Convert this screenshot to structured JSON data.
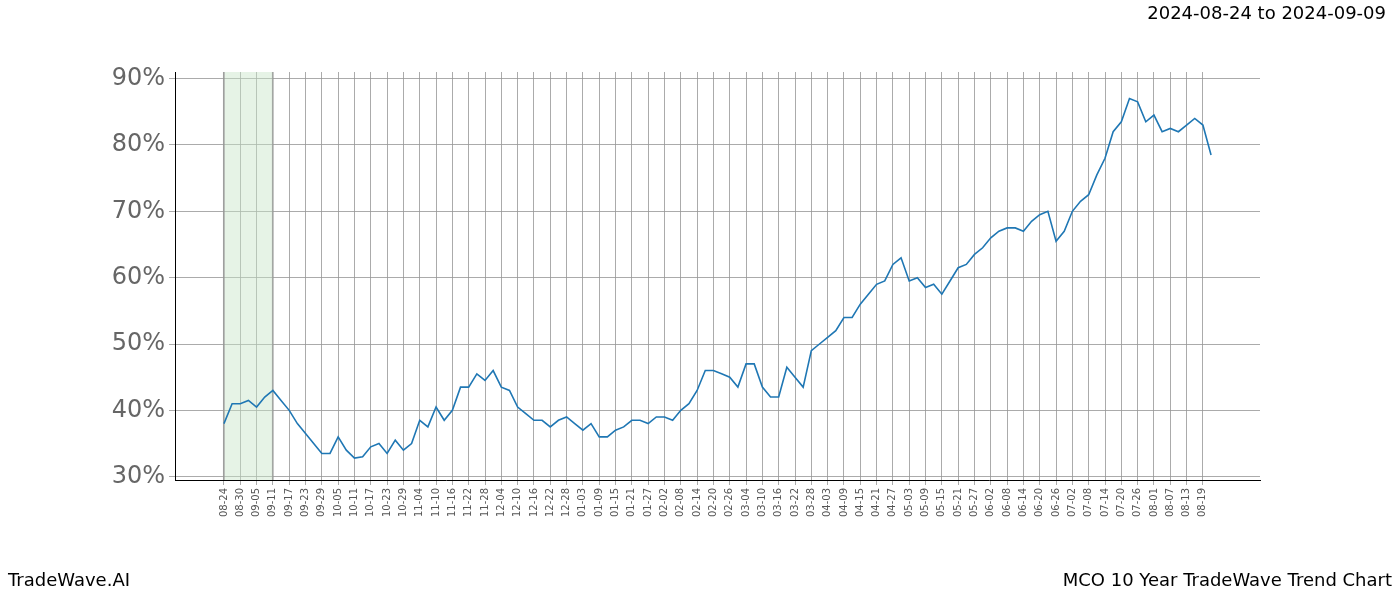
{
  "chart_data": {
    "type": "line",
    "title": "MCO 10 Year TradeWave Trend Chart",
    "subtitle": "2024-08-24 to 2024-09-09",
    "caption": "TradeWave.AI",
    "categories": [
      null,
      null,
      null,
      null,
      null,
      null,
      "08-24",
      null,
      "08-30",
      null,
      "09-05",
      null,
      "09-11",
      null,
      "09-17",
      null,
      "09-23",
      null,
      "09-29",
      null,
      "10-05",
      null,
      "10-11",
      null,
      "10-17",
      null,
      "10-23",
      null,
      "10-29",
      null,
      "11-04",
      null,
      "11-10",
      null,
      "11-16",
      null,
      "11-22",
      null,
      "11-28",
      null,
      "12-04",
      null,
      "12-10",
      null,
      "12-16",
      null,
      "12-22",
      null,
      "12-28",
      null,
      "01-03",
      null,
      "01-09",
      null,
      "01-15",
      null,
      "01-21",
      null,
      "01-27",
      null,
      "02-02",
      null,
      "02-08",
      null,
      "02-14",
      null,
      "02-20",
      null,
      "02-26",
      null,
      "03-04",
      null,
      "03-10",
      null,
      "03-16",
      null,
      "03-22",
      null,
      "03-28",
      null,
      "04-03",
      null,
      "04-09",
      null,
      "04-15",
      null,
      "04-21",
      null,
      "04-27",
      null,
      "05-03",
      null,
      "05-09",
      null,
      "05-15",
      null,
      "05-21",
      null,
      "05-27",
      null,
      "06-02",
      null,
      "06-08",
      null,
      "06-14",
      null,
      "06-20",
      null,
      "06-26",
      null,
      "07-02",
      null,
      "07-08",
      null,
      "07-14",
      null,
      "07-20",
      null,
      "07-26",
      null,
      "08-01",
      null,
      "08-07",
      null,
      "08-13",
      null,
      "08-19",
      null,
      null,
      null,
      null,
      null,
      null,
      null
    ],
    "values": [
      null,
      null,
      null,
      null,
      null,
      null,
      38,
      41,
      41,
      41.5,
      40.5,
      42,
      43,
      41.5,
      40,
      38,
      36.5,
      35,
      33.5,
      33.5,
      36,
      34,
      32.8,
      33,
      34.5,
      35,
      33.5,
      35.5,
      34,
      35,
      38.5,
      37.5,
      40.5,
      38.5,
      40,
      43.5,
      43.5,
      45.5,
      44.5,
      46,
      43.5,
      43,
      40.5,
      39.5,
      38.5,
      38.5,
      37.5,
      38.5,
      39,
      38,
      37,
      38,
      36,
      36,
      37,
      37.5,
      38.5,
      38.5,
      38,
      39,
      39,
      38.5,
      40,
      41,
      43,
      46,
      46,
      45.5,
      45,
      43.5,
      47,
      47,
      43.5,
      42,
      42,
      46.5,
      45,
      43.5,
      49,
      50,
      51,
      52,
      54,
      54,
      56,
      57.5,
      59,
      59.5,
      62,
      63,
      59.5,
      60,
      58.5,
      59,
      57.5,
      59.5,
      61.5,
      62,
      63.5,
      64.5,
      66,
      67,
      67.5,
      67.5,
      67,
      68.5,
      69.5,
      70,
      65.5,
      67,
      70,
      71.5,
      72.5,
      75.5,
      78,
      82,
      83.5,
      87,
      86.5,
      83.5,
      84.5,
      82,
      82.5,
      82,
      83,
      84,
      83,
      78.5,
      null,
      null,
      null,
      null,
      null,
      null
    ],
    "color": "#1f77b4",
    "ylim": [
      29.5,
      91
    ],
    "yticks": [
      {
        "value": 30,
        "label": "30%"
      },
      {
        "value": 40,
        "label": "40%"
      },
      {
        "value": 50,
        "label": "50%"
      },
      {
        "value": 60,
        "label": "60%"
      },
      {
        "value": 70,
        "label": "70%"
      },
      {
        "value": 80,
        "label": "80%"
      },
      {
        "value": 90,
        "label": "90%"
      }
    ],
    "grid": true,
    "highlight": {
      "from": "08-24",
      "to": "09-11"
    }
  }
}
